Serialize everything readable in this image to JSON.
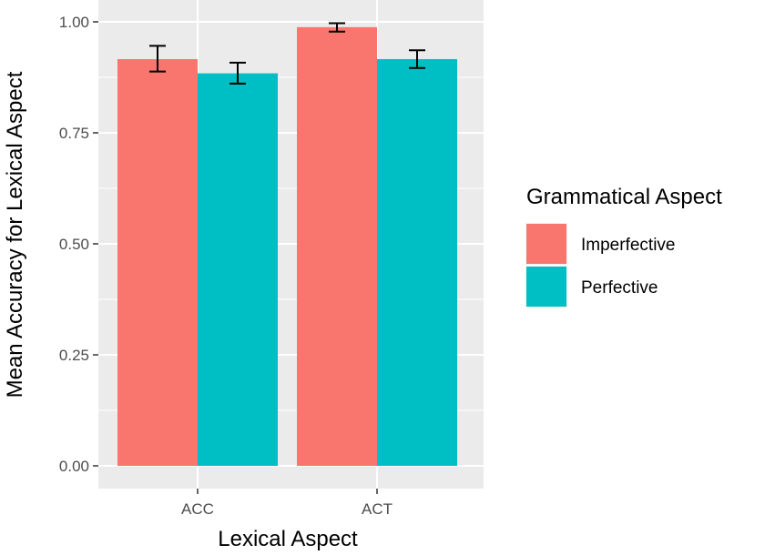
{
  "chart_data": {
    "type": "bar",
    "title": "",
    "xlabel": "Lexical Aspect",
    "ylabel": "Mean Accuracy for Lexical Aspect",
    "categories": [
      "ACC",
      "ACT"
    ],
    "ylim": [
      0,
      1.0
    ],
    "yticks": [
      "0.00",
      "0.25",
      "0.50",
      "0.75",
      "1.00"
    ],
    "grid": true,
    "legend": {
      "title": "Grammatical Aspect",
      "placement": "right"
    },
    "series": [
      {
        "name": "Imperfective",
        "color": "#F8766D",
        "values": [
          0.916,
          0.988
        ],
        "error_low": [
          0.888,
          0.978
        ],
        "error_high": [
          0.946,
          0.997
        ]
      },
      {
        "name": "Perfective",
        "color": "#00BFC4",
        "values": [
          0.884,
          0.916
        ],
        "error_low": [
          0.861,
          0.896
        ],
        "error_high": [
          0.908,
          0.936
        ]
      }
    ]
  }
}
